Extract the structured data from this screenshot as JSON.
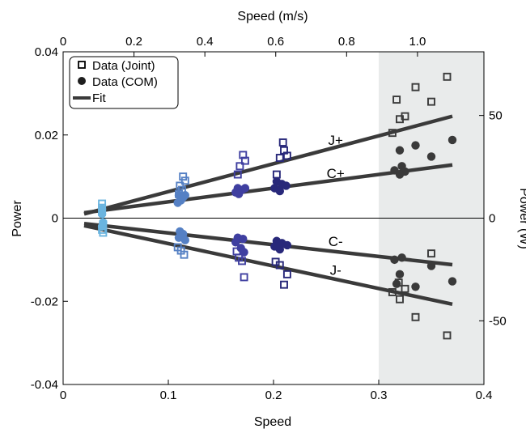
{
  "chart_data": {
    "type": "scatter",
    "xlabel": "Speed",
    "ylabel": "Power",
    "x2label": "Speed (m/s)",
    "y2label": "Power (W)",
    "xlim": [
      0,
      0.4
    ],
    "ylim": [
      -0.04,
      0.04
    ],
    "x2lim": [
      0,
      1.1875
    ],
    "y2lim": [
      -81,
      81
    ],
    "x_ticks": [
      0,
      0.1,
      0.2,
      0.3,
      0.4
    ],
    "x_tick_labels": [
      "0",
      "0.1",
      "0.2",
      "0.3",
      "0.4"
    ],
    "y_ticks": [
      -0.04,
      -0.02,
      0,
      0.02,
      0.04
    ],
    "y_tick_labels": [
      "-0.04",
      "-0.02",
      "0",
      "0.02",
      "0.04"
    ],
    "x2_ticks": [
      0,
      0.2,
      0.4,
      0.6,
      0.8,
      1.0
    ],
    "x2_tick_labels": [
      "0",
      "0.2",
      "0.4",
      "0.6",
      "0.8",
      "1.0"
    ],
    "y2_ticks": [
      -50,
      0,
      50
    ],
    "y2_tick_labels": [
      "-50",
      "0",
      "50"
    ],
    "shaded_region": {
      "x": [
        0.3,
        0.4
      ],
      "color": "#e9ebeb"
    },
    "legend": {
      "position": "top-left",
      "entries": [
        {
          "label": "Data (Joint)",
          "marker": "open-square"
        },
        {
          "label": "Data (COM)",
          "marker": "filled-circle"
        },
        {
          "label": "Fit",
          "marker": "line"
        }
      ]
    },
    "annotations": [
      {
        "text": "J+",
        "x": 0.259,
        "y": 0.0188
      },
      {
        "text": "C+",
        "x": 0.259,
        "y": 0.0108
      },
      {
        "text": "C-",
        "x": 0.259,
        "y": -0.0055
      },
      {
        "text": "J-",
        "x": 0.259,
        "y": -0.0125
      }
    ],
    "fit_lines": [
      {
        "name": "J+",
        "x": [
          0.02,
          0.37
        ],
        "y": [
          0.001,
          0.0245
        ],
        "color": "#3a3a3a"
      },
      {
        "name": "C+",
        "x": [
          0.02,
          0.37
        ],
        "y": [
          0.0013,
          0.0128
        ],
        "color": "#3a3a3a"
      },
      {
        "name": "C-",
        "x": [
          0.02,
          0.37
        ],
        "y": [
          -0.0013,
          -0.0112
        ],
        "color": "#3a3a3a"
      },
      {
        "name": "J-",
        "x": [
          0.02,
          0.37
        ],
        "y": [
          -0.0018,
          -0.0207
        ],
        "color": "#3a3a3a"
      }
    ],
    "series": [
      {
        "name": "Data (Joint)",
        "marker": "open-square",
        "points": [
          {
            "x": 0.037,
            "y": 0.0035,
            "color": "#6ab4df"
          },
          {
            "x": 0.037,
            "y": 0.0025,
            "color": "#6ab4df"
          },
          {
            "x": 0.037,
            "y": 0.0015,
            "color": "#6ab4df"
          },
          {
            "x": 0.038,
            "y": -0.0015,
            "color": "#6ab4df"
          },
          {
            "x": 0.037,
            "y": -0.0028,
            "color": "#6ab4df"
          },
          {
            "x": 0.038,
            "y": -0.0035,
            "color": "#6ab4df"
          },
          {
            "x": 0.114,
            "y": 0.01,
            "color": "#5580c4"
          },
          {
            "x": 0.116,
            "y": 0.009,
            "color": "#5580c4"
          },
          {
            "x": 0.111,
            "y": 0.0078,
            "color": "#5580c4"
          },
          {
            "x": 0.113,
            "y": 0.0068,
            "color": "#5580c4"
          },
          {
            "x": 0.11,
            "y": 0.0058,
            "color": "#5580c4"
          },
          {
            "x": 0.109,
            "y": -0.007,
            "color": "#5580c4"
          },
          {
            "x": 0.112,
            "y": -0.0078,
            "color": "#5580c4"
          },
          {
            "x": 0.115,
            "y": -0.0088,
            "color": "#5580c4"
          },
          {
            "x": 0.171,
            "y": 0.0152,
            "color": "#3f3fa0"
          },
          {
            "x": 0.168,
            "y": 0.0125,
            "color": "#3f3fa0"
          },
          {
            "x": 0.173,
            "y": 0.0138,
            "color": "#3f3fa0"
          },
          {
            "x": 0.166,
            "y": 0.0105,
            "color": "#3f3fa0"
          },
          {
            "x": 0.165,
            "y": -0.008,
            "color": "#3f3fa0"
          },
          {
            "x": 0.167,
            "y": -0.0095,
            "color": "#3f3fa0"
          },
          {
            "x": 0.17,
            "y": -0.0103,
            "color": "#3f3fa0"
          },
          {
            "x": 0.172,
            "y": -0.0142,
            "color": "#3f3fa0"
          },
          {
            "x": 0.209,
            "y": 0.0182,
            "color": "#28287a"
          },
          {
            "x": 0.21,
            "y": 0.0163,
            "color": "#28287a"
          },
          {
            "x": 0.213,
            "y": 0.015,
            "color": "#28287a"
          },
          {
            "x": 0.206,
            "y": 0.0145,
            "color": "#28287a"
          },
          {
            "x": 0.203,
            "y": 0.0105,
            "color": "#28287a"
          },
          {
            "x": 0.202,
            "y": -0.0105,
            "color": "#28287a"
          },
          {
            "x": 0.206,
            "y": -0.0113,
            "color": "#28287a"
          },
          {
            "x": 0.213,
            "y": -0.0135,
            "color": "#28287a"
          },
          {
            "x": 0.21,
            "y": -0.016,
            "color": "#28287a"
          },
          {
            "x": 0.365,
            "y": 0.034,
            "color": "#3a3a3a"
          },
          {
            "x": 0.317,
            "y": 0.0285,
            "color": "#3a3a3a"
          },
          {
            "x": 0.335,
            "y": 0.0315,
            "color": "#3a3a3a"
          },
          {
            "x": 0.35,
            "y": 0.028,
            "color": "#3a3a3a"
          },
          {
            "x": 0.32,
            "y": 0.0238,
            "color": "#3a3a3a"
          },
          {
            "x": 0.325,
            "y": 0.0245,
            "color": "#3a3a3a"
          },
          {
            "x": 0.313,
            "y": 0.0205,
            "color": "#3a3a3a"
          },
          {
            "x": 0.35,
            "y": -0.0085,
            "color": "#3a3a3a"
          },
          {
            "x": 0.319,
            "y": -0.0155,
            "color": "#3a3a3a"
          },
          {
            "x": 0.325,
            "y": -0.017,
            "color": "#3a3a3a"
          },
          {
            "x": 0.313,
            "y": -0.0178,
            "color": "#3a3a3a"
          },
          {
            "x": 0.32,
            "y": -0.0195,
            "color": "#3a3a3a"
          },
          {
            "x": 0.335,
            "y": -0.0238,
            "color": "#3a3a3a"
          },
          {
            "x": 0.365,
            "y": -0.0282,
            "color": "#3a3a3a"
          }
        ]
      },
      {
        "name": "Data (COM)",
        "marker": "filled-circle",
        "points": [
          {
            "x": 0.037,
            "y": 0.0022,
            "color": "#6ab4df"
          },
          {
            "x": 0.037,
            "y": 0.001,
            "color": "#6ab4df"
          },
          {
            "x": 0.038,
            "y": -0.001,
            "color": "#6ab4df"
          },
          {
            "x": 0.037,
            "y": -0.002,
            "color": "#6ab4df"
          },
          {
            "x": 0.11,
            "y": 0.0055,
            "color": "#5580c4"
          },
          {
            "x": 0.114,
            "y": 0.005,
            "color": "#5580c4"
          },
          {
            "x": 0.112,
            "y": 0.0043,
            "color": "#5580c4"
          },
          {
            "x": 0.109,
            "y": 0.0037,
            "color": "#5580c4"
          },
          {
            "x": 0.116,
            "y": 0.0055,
            "color": "#5580c4"
          },
          {
            "x": 0.111,
            "y": -0.0032,
            "color": "#5580c4"
          },
          {
            "x": 0.114,
            "y": -0.0038,
            "color": "#5580c4"
          },
          {
            "x": 0.11,
            "y": -0.0047,
            "color": "#5580c4"
          },
          {
            "x": 0.116,
            "y": -0.0053,
            "color": "#5580c4"
          },
          {
            "x": 0.166,
            "y": 0.0072,
            "color": "#3f3fa0"
          },
          {
            "x": 0.17,
            "y": 0.0068,
            "color": "#3f3fa0"
          },
          {
            "x": 0.164,
            "y": 0.0062,
            "color": "#3f3fa0"
          },
          {
            "x": 0.173,
            "y": 0.0072,
            "color": "#3f3fa0"
          },
          {
            "x": 0.167,
            "y": 0.0058,
            "color": "#3f3fa0"
          },
          {
            "x": 0.166,
            "y": -0.0047,
            "color": "#3f3fa0"
          },
          {
            "x": 0.171,
            "y": -0.005,
            "color": "#3f3fa0"
          },
          {
            "x": 0.164,
            "y": -0.0058,
            "color": "#3f3fa0"
          },
          {
            "x": 0.169,
            "y": -0.0072,
            "color": "#3f3fa0"
          },
          {
            "x": 0.172,
            "y": -0.0082,
            "color": "#3f3fa0"
          },
          {
            "x": 0.203,
            "y": 0.0088,
            "color": "#28287a"
          },
          {
            "x": 0.208,
            "y": 0.0082,
            "color": "#28287a"
          },
          {
            "x": 0.201,
            "y": 0.0072,
            "color": "#28287a"
          },
          {
            "x": 0.206,
            "y": 0.0065,
            "color": "#28287a"
          },
          {
            "x": 0.212,
            "y": 0.0078,
            "color": "#28287a"
          },
          {
            "x": 0.203,
            "y": -0.0055,
            "color": "#28287a"
          },
          {
            "x": 0.208,
            "y": -0.006,
            "color": "#28287a"
          },
          {
            "x": 0.201,
            "y": -0.0068,
            "color": "#28287a"
          },
          {
            "x": 0.206,
            "y": -0.0075,
            "color": "#28287a"
          },
          {
            "x": 0.213,
            "y": -0.0065,
            "color": "#28287a"
          },
          {
            "x": 0.32,
            "y": 0.0163,
            "color": "#3a3a3a"
          },
          {
            "x": 0.335,
            "y": 0.0175,
            "color": "#3a3a3a"
          },
          {
            "x": 0.37,
            "y": 0.0188,
            "color": "#3a3a3a"
          },
          {
            "x": 0.35,
            "y": 0.0148,
            "color": "#3a3a3a"
          },
          {
            "x": 0.322,
            "y": 0.0125,
            "color": "#3a3a3a"
          },
          {
            "x": 0.315,
            "y": 0.0115,
            "color": "#3a3a3a"
          },
          {
            "x": 0.325,
            "y": 0.0112,
            "color": "#3a3a3a"
          },
          {
            "x": 0.32,
            "y": 0.0105,
            "color": "#3a3a3a"
          },
          {
            "x": 0.315,
            "y": -0.01,
            "color": "#3a3a3a"
          },
          {
            "x": 0.322,
            "y": -0.0095,
            "color": "#3a3a3a"
          },
          {
            "x": 0.35,
            "y": -0.0115,
            "color": "#3a3a3a"
          },
          {
            "x": 0.32,
            "y": -0.0135,
            "color": "#3a3a3a"
          },
          {
            "x": 0.317,
            "y": -0.0158,
            "color": "#3a3a3a"
          },
          {
            "x": 0.335,
            "y": -0.0165,
            "color": "#3a3a3a"
          },
          {
            "x": 0.37,
            "y": -0.0152,
            "color": "#3a3a3a"
          }
        ]
      }
    ]
  }
}
